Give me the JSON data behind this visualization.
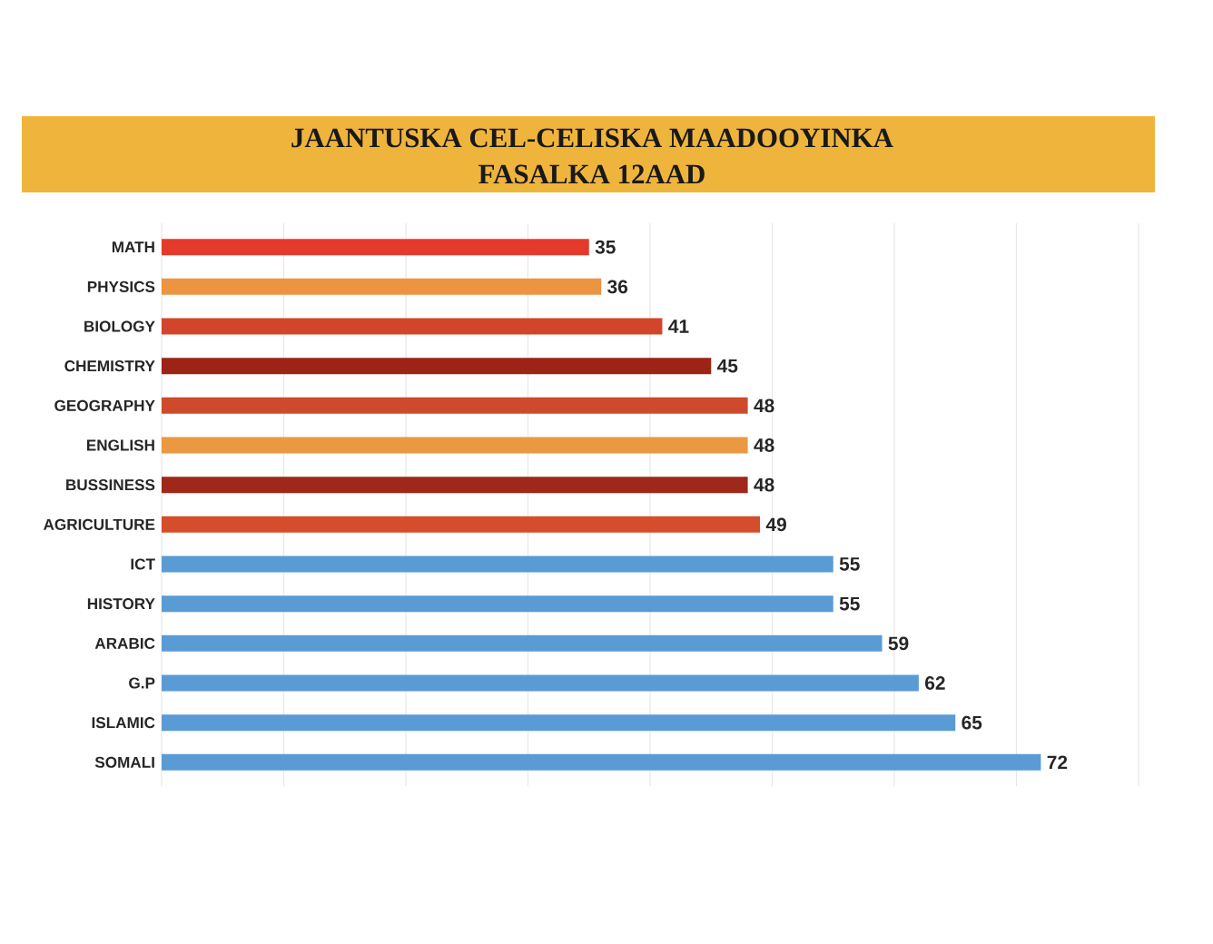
{
  "chart_data": {
    "type": "bar",
    "orientation": "horizontal",
    "title": "JAANTUSKA CEL-CELISKA MAADOOYINKA",
    "subtitle": "FASALKA 12AAD",
    "categories": [
      "MATH",
      "PHYSICS",
      "BIOLOGY",
      "CHEMISTRY",
      "GEOGRAPHY",
      "ENGLISH",
      "BUSSINESS",
      "AGRICULTURE",
      "ICT",
      "HISTORY",
      "ARABIC",
      "G.P",
      "ISLAMIC",
      "SOMALI"
    ],
    "values": [
      35,
      36,
      41,
      45,
      48,
      48,
      48,
      49,
      55,
      55,
      59,
      62,
      65,
      72
    ],
    "colors": [
      "#e53a2b",
      "#ec9440",
      "#d2452b",
      "#9b2417",
      "#cd4a2c",
      "#eb9842",
      "#9e2819",
      "#d44e2c",
      "#5b9bd5",
      "#5b9bd5",
      "#5b9bd5",
      "#5b9bd5",
      "#5b9bd5",
      "#5b9bd5"
    ],
    "xlim": [
      0,
      80
    ],
    "xticks": [
      {
        "value": 0,
        "label": null
      },
      {
        "value": 10,
        "label": null
      },
      {
        "value": 20,
        "label": null
      },
      {
        "value": 30,
        "label": null
      },
      {
        "value": 40,
        "label": null
      },
      {
        "value": 50,
        "label": null
      },
      {
        "value": 60,
        "label": null
      },
      {
        "value": 70,
        "label": null
      },
      {
        "value": 80,
        "label": null
      }
    ],
    "grid": "x",
    "tick_labels": "y",
    "data_labels": true
  }
}
